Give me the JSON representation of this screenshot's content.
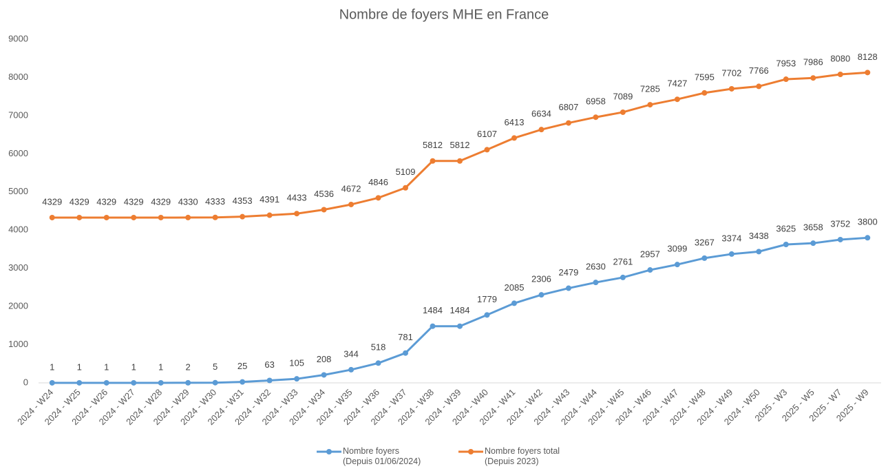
{
  "chart_data": {
    "type": "line",
    "title": "Nombre de foyers MHE en France",
    "categories": [
      "2024 - W24",
      "2024 - W25",
      "2024 - W26",
      "2024 - W27",
      "2024 - W28",
      "2024 - W29",
      "2024 - W30",
      "2024 - W31",
      "2024 - W32",
      "2024 - W33",
      "2024 - W34",
      "2024 - W35",
      "2024 - W36",
      "2024 - W37",
      "2024 - W38",
      "2024 - W39",
      "2024 - W40",
      "2024 - W41",
      "2024 - W42",
      "2024 - W43",
      "2024 - W44",
      "2024 - W45",
      "2024 - W46",
      "2024 - W47",
      "2024 - W48",
      "2024 - W49",
      "2024 - W50",
      "2025 - W3",
      "2025 - W5",
      "2025 - W7",
      "2025 - W9"
    ],
    "series": [
      {
        "name": "Nombre foyers\n(Depuis 01/06/2024)",
        "color": "#5b9bd5",
        "values": [
          1,
          1,
          1,
          1,
          1,
          2,
          5,
          25,
          63,
          105,
          208,
          344,
          518,
          781,
          1484,
          1484,
          1779,
          2085,
          2306,
          2479,
          2630,
          2761,
          2957,
          3099,
          3267,
          3374,
          3438,
          3625,
          3658,
          3752,
          3800
        ]
      },
      {
        "name": "Nombre foyers total\n(Depuis 2023)",
        "color": "#ed7d31",
        "values": [
          4329,
          4329,
          4329,
          4329,
          4329,
          4330,
          4333,
          4353,
          4391,
          4433,
          4536,
          4672,
          4846,
          5109,
          5812,
          5812,
          6107,
          6413,
          6634,
          6807,
          6958,
          7089,
          7285,
          7427,
          7595,
          7702,
          7766,
          7953,
          7986,
          8080,
          8128
        ]
      }
    ],
    "ylim": [
      0,
      9000
    ],
    "yticks": [
      0,
      1000,
      2000,
      3000,
      4000,
      5000,
      6000,
      7000,
      8000,
      9000
    ],
    "grid": false,
    "legend": "bottom"
  }
}
